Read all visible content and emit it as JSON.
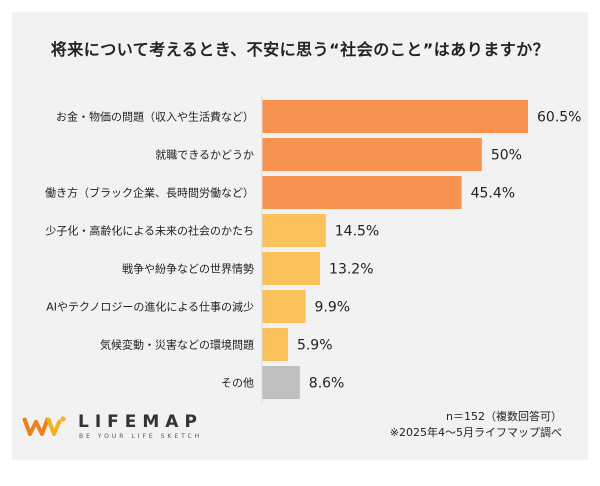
{
  "chart_data": {
    "type": "bar",
    "orientation": "horizontal",
    "title": "将来について考えるとき、不安に思う“社会のこと”はありますか？",
    "categories": [
      "お金・物価の問題（収入や生活費など）",
      "就職できるかどうか",
      "働き方（ブラック企業、長時間労働など）",
      "少子化・高齢化による未来の社会のかたち",
      "戦争や紛争などの世界情勢",
      "AIやテクノロジーの進化による仕事の減少",
      "気候変動・災害などの環境問題",
      "その他"
    ],
    "values": [
      60.5,
      50,
      45.4,
      14.5,
      13.2,
      9.9,
      5.9,
      8.6
    ],
    "value_labels": [
      "60.5%",
      "50%",
      "45.4%",
      "14.5%",
      "13.2%",
      "9.9%",
      "5.9%",
      "8.6%"
    ],
    "bar_colors": [
      "#f79250",
      "#f79250",
      "#f79250",
      "#fbc25c",
      "#fbc25c",
      "#fbc25c",
      "#fbc25c",
      "#bfbfbf"
    ],
    "xlim": [
      0,
      60.5
    ],
    "xlabel": "",
    "ylabel": "",
    "grid": false
  },
  "footer": {
    "sample_note": "n＝152（複数回答可）",
    "source_note": "※2025年4〜5月ライフマップ調べ"
  },
  "brand": {
    "name": "LIFEMAP",
    "tagline": "BE YOUR LIFE SKETCH",
    "color_primary": "#f07f1e",
    "color_secondary": "#f5b21a"
  }
}
